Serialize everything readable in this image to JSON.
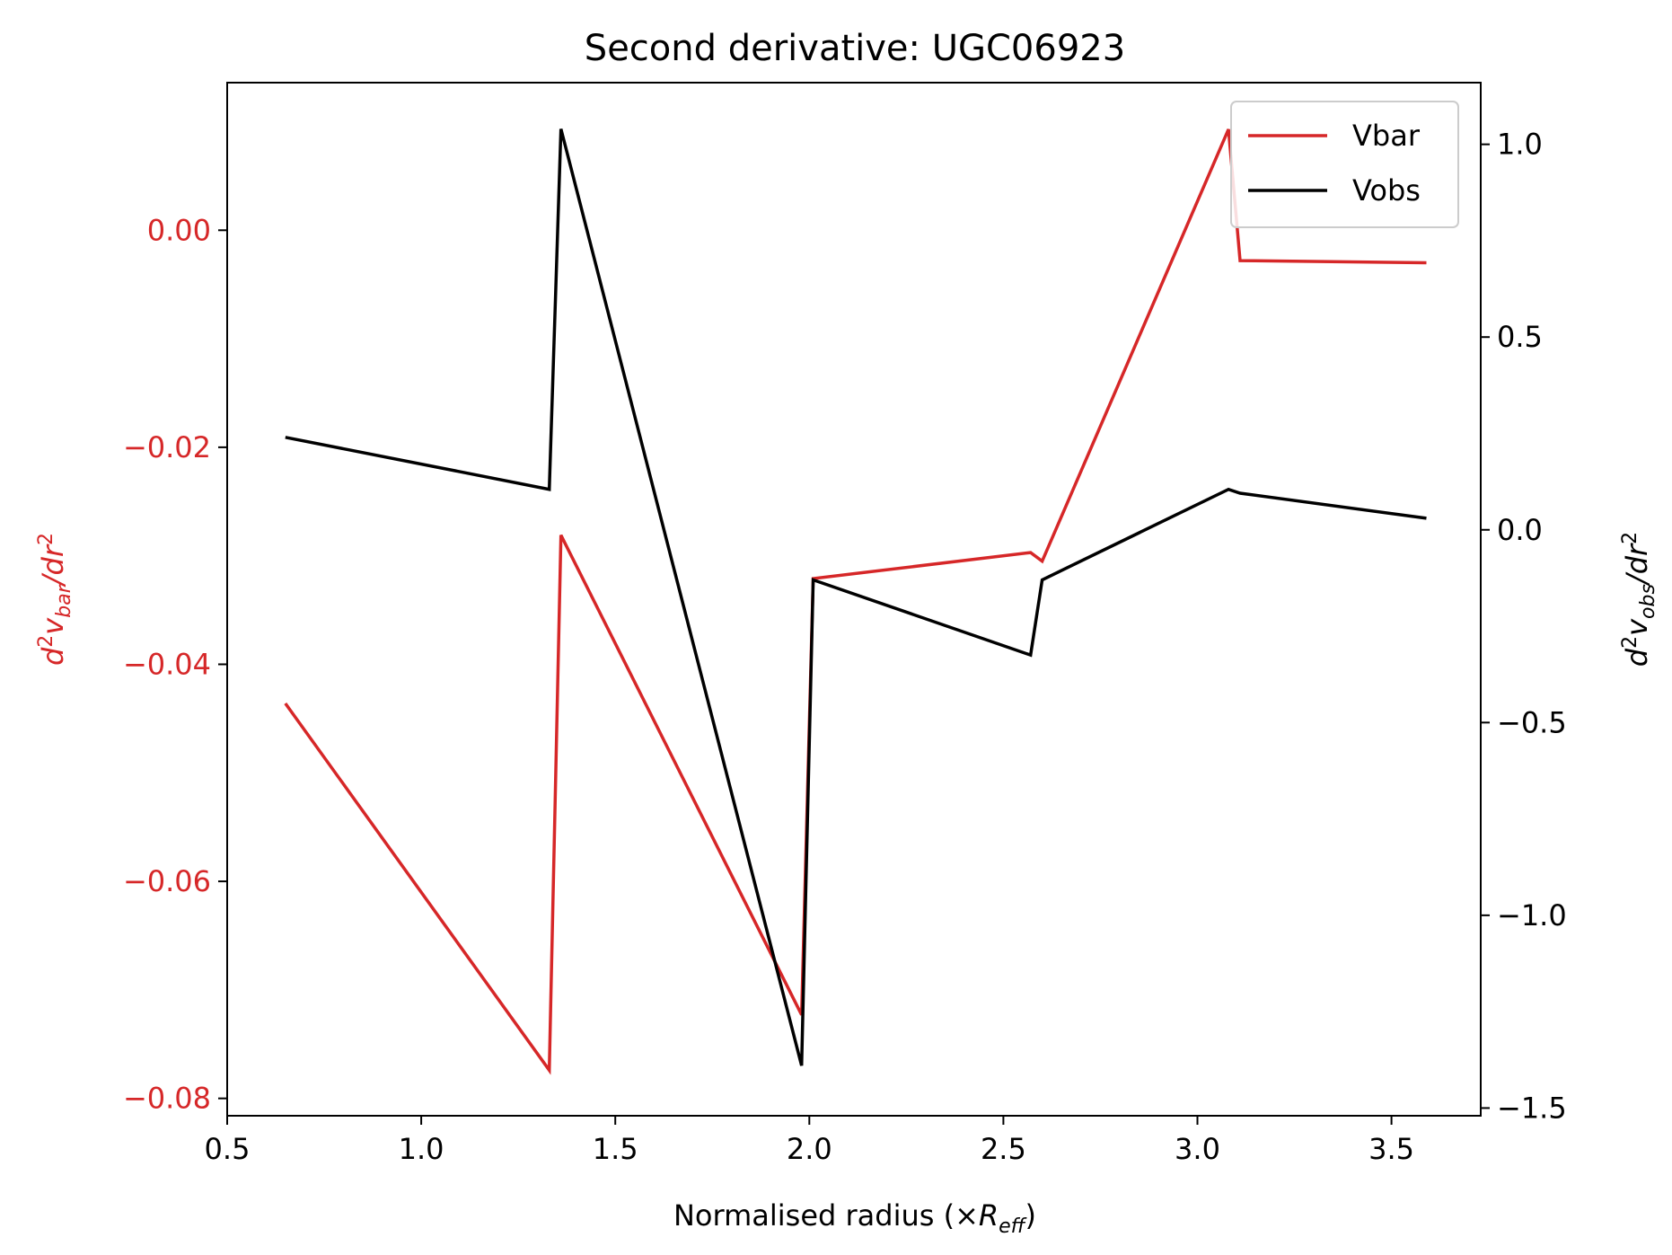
{
  "chart_data": {
    "type": "line",
    "title": "Second derivative: UGC06923",
    "xlabel_text": "Normalised radius (×",
    "xlabel_symbol": "R",
    "xlabel_sub": "eff",
    "xlabel_close": ")",
    "ylabel_left": {
      "d": "d",
      "exp": "2",
      "v": "v",
      "sub": "bar",
      "slash": "/dr",
      "exp2": "2"
    },
    "ylabel_right": {
      "d": "d",
      "exp": "2",
      "v": "v",
      "sub": "obs",
      "slash": "/dr",
      "exp2": "2"
    },
    "xlim": [
      0.5,
      3.73
    ],
    "ylim_left": [
      -0.0816,
      0.0136
    ],
    "ylim_right": [
      -1.52,
      1.16
    ],
    "x_ticks": [
      "0.5",
      "1.0",
      "1.5",
      "2.0",
      "2.5",
      "3.0",
      "3.5"
    ],
    "x_tick_values": [
      0.5,
      1.0,
      1.5,
      2.0,
      2.5,
      3.0,
      3.5
    ],
    "y_left_ticks": [
      "0.00",
      "−0.02",
      "−0.04",
      "−0.06",
      "−0.08"
    ],
    "y_left_tick_values": [
      0.0,
      -0.02,
      -0.04,
      -0.06,
      -0.08
    ],
    "y_right_ticks": [
      "1.0",
      "0.5",
      "0.0",
      "−0.5",
      "−1.0",
      "−1.5"
    ],
    "y_right_tick_values": [
      1.0,
      0.5,
      0.0,
      -0.5,
      -1.0,
      -1.5
    ],
    "legend_position": "upper right",
    "series": [
      {
        "name": "Vbar",
        "axis": "left",
        "color": "#d62728",
        "x": [
          0.65,
          1.33,
          1.36,
          1.98,
          2.01,
          2.57,
          2.6,
          3.08,
          3.11,
          3.59
        ],
        "y": [
          -0.0436,
          -0.0774,
          -0.0281,
          -0.0723,
          -0.0321,
          -0.0297,
          -0.0305,
          0.0093,
          -0.0028,
          -0.003
        ]
      },
      {
        "name": "Vobs",
        "axis": "right",
        "color": "#000000",
        "x": [
          0.65,
          1.33,
          1.36,
          1.98,
          2.01,
          2.57,
          2.6,
          3.08,
          3.11,
          3.59
        ],
        "y": [
          0.24,
          0.105,
          1.04,
          -1.39,
          -0.13,
          -0.325,
          -0.13,
          0.105,
          0.095,
          0.03
        ]
      }
    ]
  }
}
